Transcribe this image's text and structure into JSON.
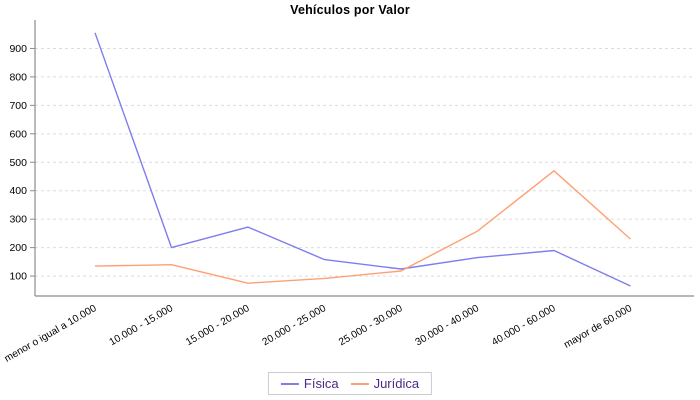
{
  "chart_data": {
    "type": "line",
    "title": "Vehículos por Valor",
    "categories": [
      "menor o igual a 10.000",
      "10.000 - 15.000",
      "15.000 - 20.000",
      "20.000 - 25.000",
      "25.000 - 30.000",
      "30.000 - 40.000",
      "40.000 - 60.000",
      "mayor de 60.000"
    ],
    "series": [
      {
        "name": "Física",
        "color": "#7D7DF0",
        "values": [
          955,
          200,
          272,
          158,
          125,
          165,
          190,
          65
        ]
      },
      {
        "name": "Jurídica",
        "color": "#FFA073",
        "values": [
          135,
          140,
          75,
          92,
          118,
          258,
          470,
          230
        ]
      }
    ],
    "yticks": [
      100,
      200,
      300,
      400,
      500,
      600,
      700,
      800,
      900
    ],
    "ylim": [
      30,
      1000
    ],
    "grid": "horizontal-dashed",
    "legend_position": "bottom",
    "x_label_rotation_deg": -30,
    "colors": {
      "axis": "#8C8C8C",
      "gridline": "#DCDCDC",
      "tick_label": "#000000",
      "title_text": "#000000",
      "legend_text": "#4B2882",
      "legend_border": "#CCCCCC",
      "background": "#FFFFFF"
    }
  }
}
